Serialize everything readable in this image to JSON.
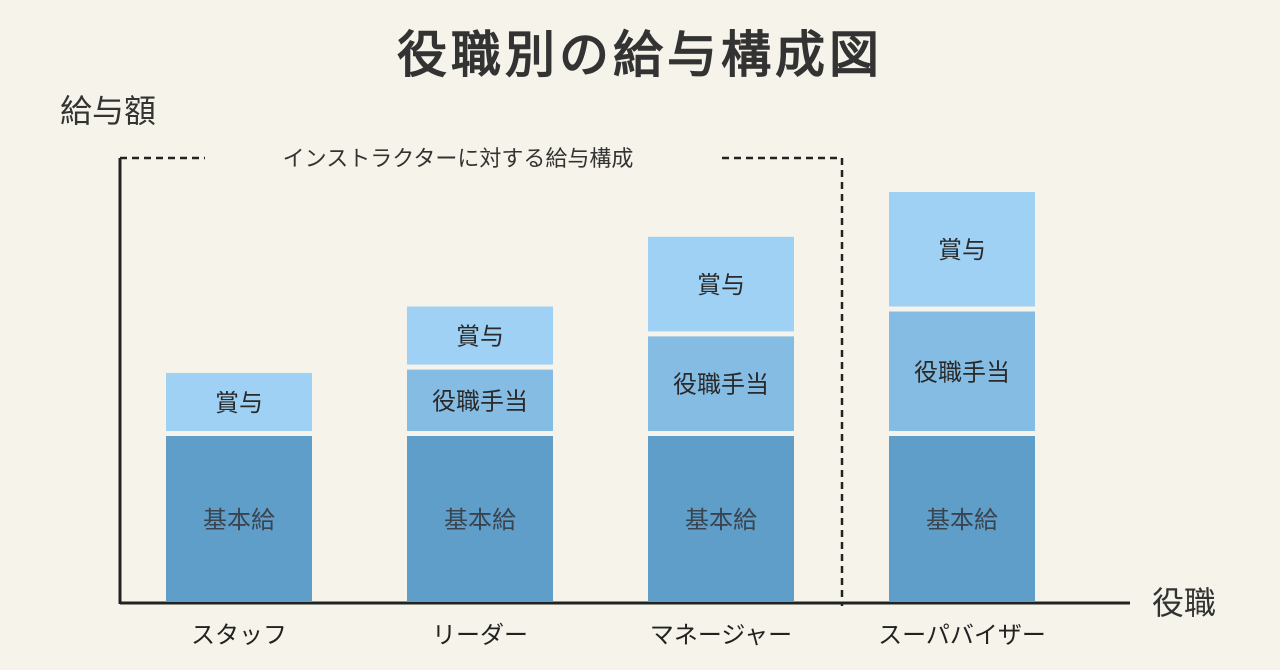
{
  "chart_data": {
    "type": "bar",
    "stacked": true,
    "title": "役職別の給与構成図",
    "ylabel": "給与額",
    "xlabel": "役職",
    "categories": [
      "スタッフ",
      "リーダー",
      "マネージャー",
      "スーパバイザー"
    ],
    "series": [
      {
        "name": "基本給",
        "values": [
          1,
          1,
          1,
          1
        ],
        "color": "#5f9ec8"
      },
      {
        "name": "役職手当",
        "values": [
          0,
          0.4,
          0.6,
          0.75
        ],
        "color": "#85bce4"
      },
      {
        "name": "賞与",
        "values": [
          0.38,
          0.38,
          0.6,
          0.72
        ],
        "color": "#9fd1f5"
      }
    ],
    "group": {
      "label": "インストラクターに対する給与構成",
      "categories": [
        "スタッフ",
        "リーダー",
        "マネージャー"
      ],
      "style": "dashed"
    },
    "ylim": [
      0,
      2.6
    ],
    "y_ticks_shown": false,
    "grid": false,
    "legend": "none"
  }
}
